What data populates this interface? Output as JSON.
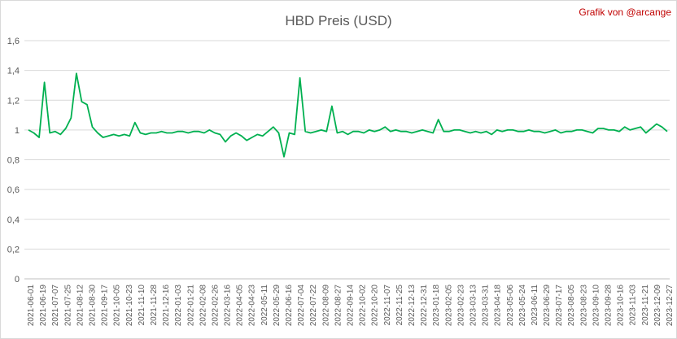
{
  "chart_data": {
    "type": "line",
    "title": "HBD Preis (USD)",
    "credit": "Grafik von @arcange",
    "xlabel": "",
    "ylabel": "",
    "ylim": [
      0,
      1.6
    ],
    "yticks": [
      "0",
      "0,2",
      "0,4",
      "0,6",
      "0,8",
      "1",
      "1,2",
      "1,4",
      "1,6"
    ],
    "grid": true,
    "legend": "none",
    "line_color": "#00b050",
    "x_tick_labels": [
      "2021-06-01",
      "2021-06-19",
      "2021-07-07",
      "2021-07-25",
      "2021-08-12",
      "2021-08-30",
      "2021-09-17",
      "2021-10-05",
      "2021-10-23",
      "2021-11-10",
      "2021-11-28",
      "2021-12-16",
      "2022-01-03",
      "2022-01-21",
      "2022-02-08",
      "2022-02-26",
      "2022-03-16",
      "2022-04-05",
      "2022-04-23",
      "2022-05-11",
      "2022-05-29",
      "2022-06-16",
      "2022-07-04",
      "2022-07-22",
      "2022-08-09",
      "2022-08-27",
      "2022-09-14",
      "2022-10-02",
      "2022-10-20",
      "2022-11-07",
      "2022-11-25",
      "2022-12-13",
      "2022-12-31",
      "2023-01-18",
      "2023-02-05",
      "2023-02-23",
      "2023-03-13",
      "2023-03-31",
      "2023-04-18",
      "2023-05-06",
      "2023-05-24",
      "2023-06-11",
      "2023-06-29",
      "2023-07-17",
      "2023-08-05",
      "2023-08-23",
      "2023-09-10",
      "2023-09-28",
      "2023-10-16",
      "2023-11-03",
      "2023-11-21",
      "2023-12-09",
      "2023-12-27"
    ],
    "series": [
      {
        "x_start": "2021-06-01",
        "step_days": 9,
        "values": [
          1.0,
          0.98,
          0.95,
          1.32,
          0.98,
          0.99,
          0.97,
          1.01,
          1.08,
          1.38,
          1.19,
          1.17,
          1.02,
          0.98,
          0.95,
          0.96,
          0.97,
          0.96,
          0.97,
          0.96,
          1.05,
          0.98,
          0.97,
          0.98,
          0.98,
          0.99,
          0.98,
          0.98,
          0.99,
          0.99,
          0.98,
          0.99,
          0.99,
          0.98,
          1.0,
          0.98,
          0.97,
          0.92,
          0.96,
          0.98,
          0.96,
          0.93,
          0.95,
          0.97,
          0.96,
          0.99,
          1.02,
          0.98,
          0.82,
          0.98,
          0.97,
          1.35,
          0.99,
          0.98,
          0.99,
          1.0,
          0.99,
          1.16,
          0.98,
          0.99,
          0.97,
          0.99,
          0.99,
          0.98,
          1.0,
          0.99,
          1.0,
          1.02,
          0.99,
          1.0,
          0.99,
          0.99,
          0.98,
          0.99,
          1.0,
          0.99,
          0.98,
          1.07,
          0.99,
          0.99,
          1.0,
          1.0,
          0.99,
          0.98,
          0.99,
          0.98,
          0.99,
          0.97,
          1.0,
          0.99,
          1.0,
          1.0,
          0.99,
          0.99,
          1.0,
          0.99,
          0.99,
          0.98,
          0.99,
          1.0,
          0.98,
          0.99,
          0.99,
          1.0,
          1.0,
          0.99,
          0.98,
          1.01,
          1.01,
          1.0,
          1.0,
          0.99,
          1.02,
          1.0,
          1.01,
          1.02,
          0.98,
          1.01,
          1.04,
          1.02,
          0.99
        ]
      }
    ]
  }
}
